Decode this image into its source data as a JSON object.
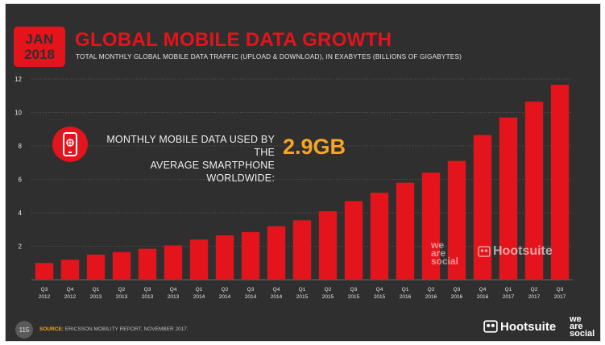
{
  "badge": {
    "month": "JAN",
    "year": "2018"
  },
  "title": "GLOBAL MOBILE DATA GROWTH",
  "subtitle": "TOTAL MONTHLY GLOBAL MOBILE DATA TRAFFIC (UPLOAD & DOWNLOAD), IN EXABYTES (BILLIONS OF GIGABYTES)",
  "callout": {
    "line1": "MONTHLY MOBILE DATA USED BY THE",
    "line2": "AVERAGE SMARTPHONE WORLDWIDE:",
    "value": "2.9GB",
    "icon": "smartphone-icon"
  },
  "footer": {
    "page": "115",
    "source_label": "SOURCE:",
    "source_text": "ERICSSON MOBILITY REPORT, NOVEMBER 2017.",
    "hootsuite": "Hootsuite",
    "we_are_social": [
      "we",
      "are",
      "social"
    ]
  },
  "watermark": {
    "we_are_social": [
      "we",
      "are",
      "social"
    ],
    "hootsuite": "Hootsuite"
  },
  "colors": {
    "background": "#2f2f2f",
    "accent": "#e3141b",
    "highlight": "#f5a623",
    "text": "#e6e6e6"
  },
  "chart_data": {
    "type": "bar",
    "title": "GLOBAL MOBILE DATA GROWTH",
    "subtitle": "TOTAL MONTHLY GLOBAL MOBILE DATA TRAFFIC (UPLOAD & DOWNLOAD), IN EXABYTES (BILLIONS OF GIGABYTES)",
    "categories": [
      [
        "Q3",
        "2012"
      ],
      [
        "Q4",
        "2012"
      ],
      [
        "Q1",
        "2013"
      ],
      [
        "Q2",
        "2013"
      ],
      [
        "Q3",
        "2013"
      ],
      [
        "Q4",
        "2013"
      ],
      [
        "Q1",
        "2014"
      ],
      [
        "Q2",
        "2014"
      ],
      [
        "Q3",
        "2014"
      ],
      [
        "Q4",
        "2014"
      ],
      [
        "Q1",
        "2015"
      ],
      [
        "Q2",
        "2015"
      ],
      [
        "Q3",
        "2015"
      ],
      [
        "Q4",
        "2015"
      ],
      [
        "Q1",
        "2016"
      ],
      [
        "Q2",
        "2016"
      ],
      [
        "Q3",
        "2016"
      ],
      [
        "Q4",
        "2016"
      ],
      [
        "Q1",
        "2017"
      ],
      [
        "Q2",
        "2017"
      ],
      [
        "Q3",
        "2017"
      ]
    ],
    "values": [
      1.0,
      1.2,
      1.5,
      1.65,
      1.85,
      2.05,
      2.4,
      2.65,
      2.85,
      3.2,
      3.55,
      4.1,
      4.7,
      5.2,
      5.8,
      6.4,
      7.1,
      8.65,
      9.7,
      10.65,
      11.65
    ],
    "yticks": [
      2,
      4,
      6,
      8,
      10,
      12
    ],
    "ylim": [
      0,
      12
    ],
    "grid": true,
    "bar_color": "#e3141b"
  }
}
